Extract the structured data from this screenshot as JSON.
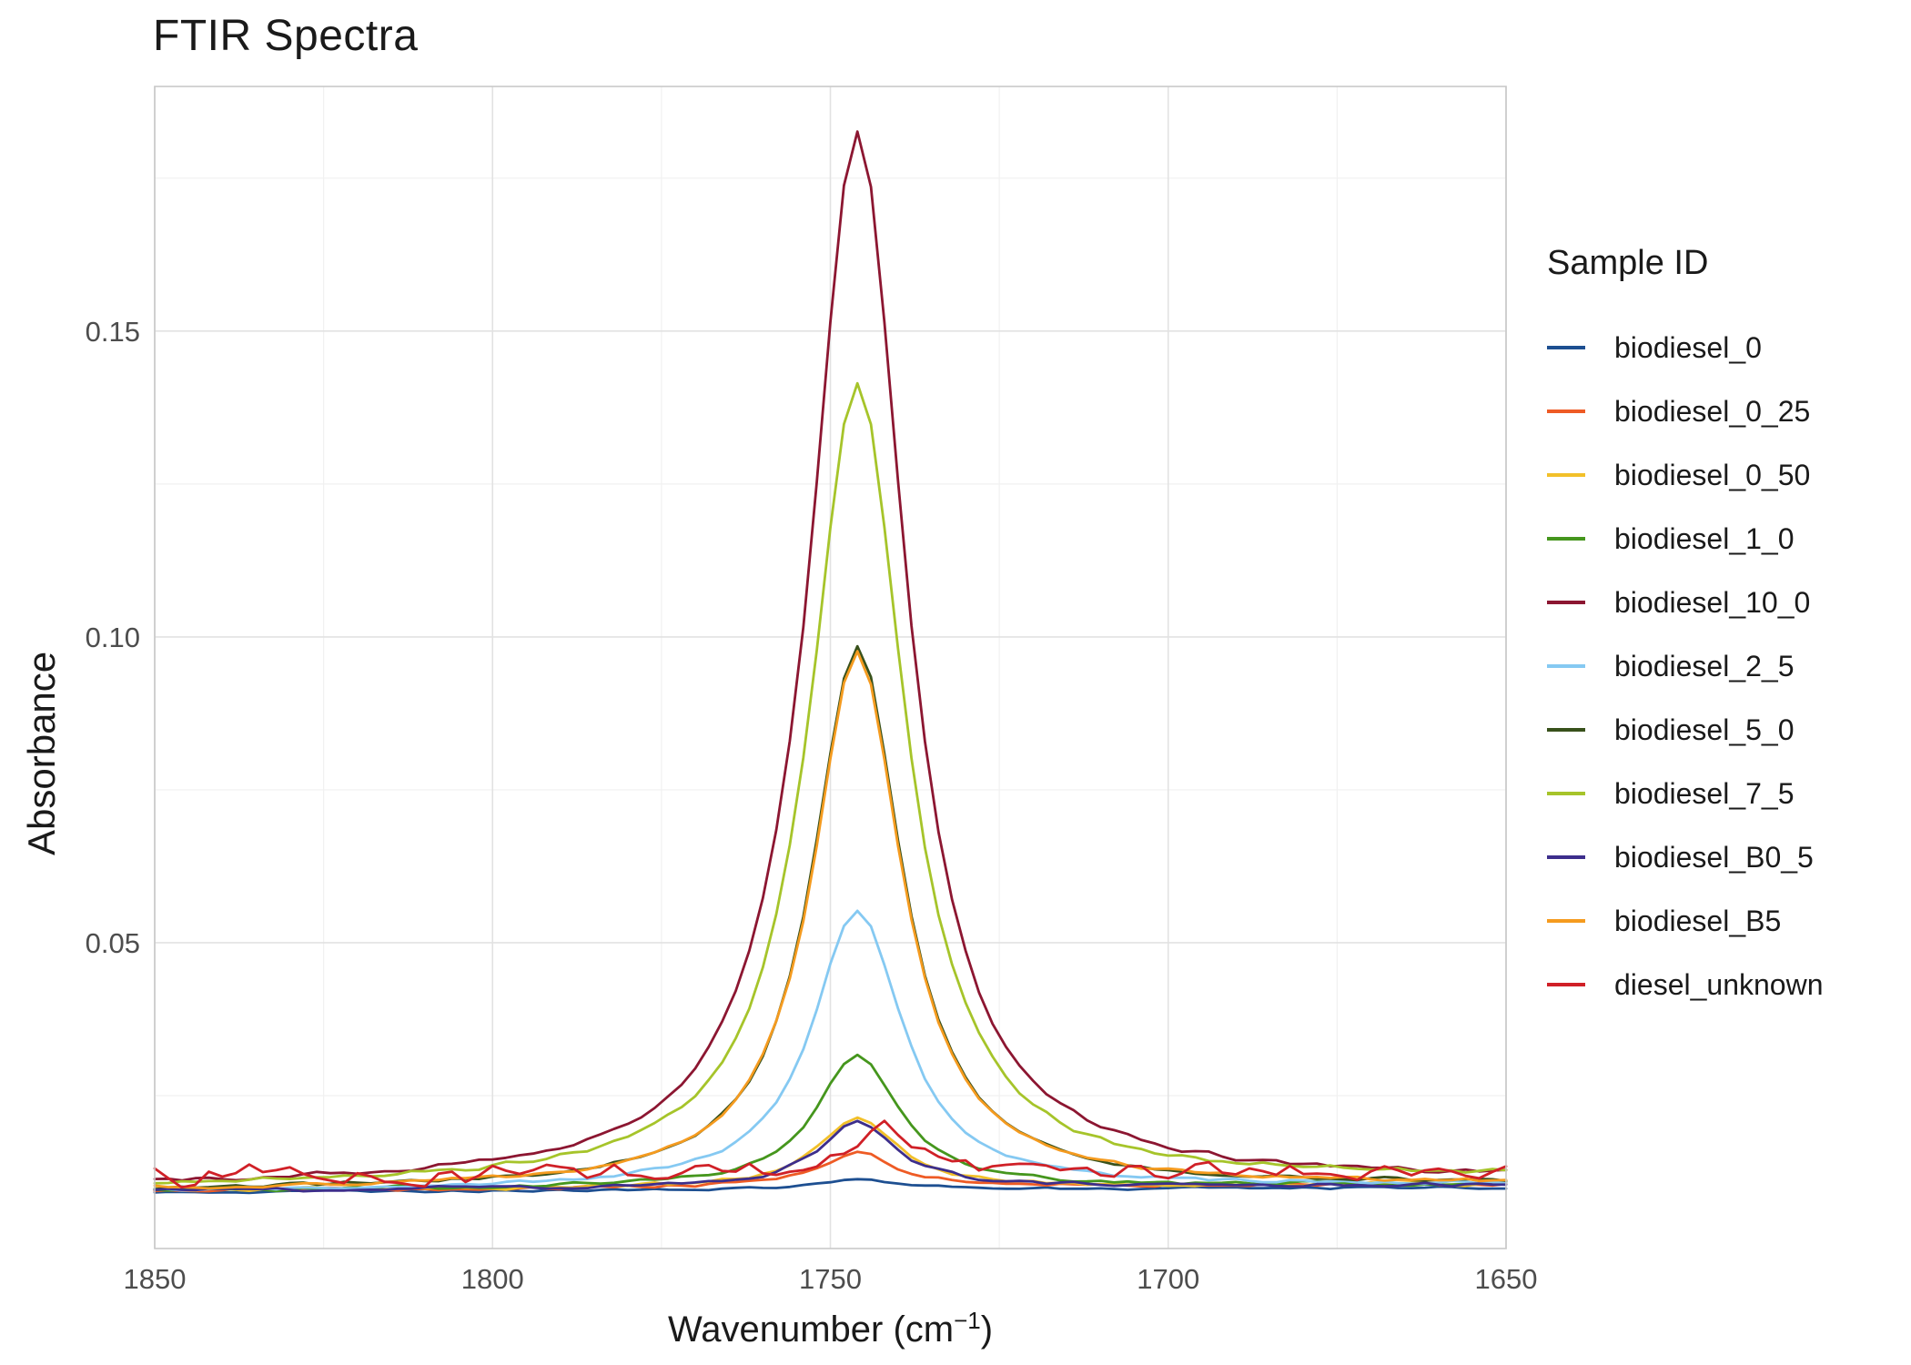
{
  "chart_data": {
    "type": "line",
    "title": "FTIR Spectra",
    "ylabel": "Absorbance",
    "xlabel_prefix": "Wavenumber (cm",
    "xlabel_superscript": "−1",
    "xlabel_suffix": ")",
    "legend_title": "Sample ID",
    "legend_position": "right",
    "x_range": [
      1850,
      1650
    ],
    "x_axis_reversed": true,
    "x_step": 2,
    "ylim": [
      0,
      0.19
    ],
    "x_tick_values": [
      1850,
      1800,
      1750,
      1700,
      1650
    ],
    "x_tick_labels": [
      "1850",
      "1800",
      "1750",
      "1700",
      "1650"
    ],
    "x_minor_ticks": [
      1825,
      1775,
      1725,
      1675
    ],
    "y_tick_values": [
      0.05,
      0.1,
      0.15
    ],
    "y_tick_labels": [
      "0.05",
      "0.10",
      "0.15"
    ],
    "y_minor_ticks": [
      0.025,
      0.075,
      0.125,
      0.175
    ],
    "grid": {
      "major_color": "#e2e2e2",
      "minor_color": "#f1f1f1",
      "panel_border": "#c9c9c9",
      "panel_bg": "#ffffff",
      "tick_label_color": "#4d4d4d"
    },
    "series": [
      {
        "name": "biodiesel_0",
        "color": "#1d4f91",
        "baseline": 0.0092,
        "peak_absorbance": 0.011,
        "peak_center": 1746,
        "peak_halfwidth": 7.0,
        "noise": 0.00025,
        "slope": 0.0008,
        "seed": 1
      },
      {
        "name": "biodiesel_0_25",
        "color": "#ee5b25",
        "baseline": 0.0095,
        "peak_absorbance": 0.015,
        "peak_center": 1746,
        "peak_halfwidth": 7.0,
        "noise": 0.0004,
        "slope": 0.001,
        "seed": 2
      },
      {
        "name": "biodiesel_0_50",
        "color": "#f2c029",
        "baseline": 0.0095,
        "peak_absorbance": 0.021,
        "peak_center": 1746,
        "peak_halfwidth": 7.0,
        "noise": 0.0004,
        "slope": 0.001,
        "seed": 3
      },
      {
        "name": "biodiesel_1_0",
        "color": "#45961d",
        "baseline": 0.0095,
        "peak_absorbance": 0.031,
        "peak_center": 1746,
        "peak_halfwidth": 7.5,
        "noise": 0.0004,
        "slope": 0.001,
        "seed": 4
      },
      {
        "name": "biodiesel_10_0",
        "color": "#8c1631",
        "baseline": 0.01,
        "peak_absorbance": 0.182,
        "peak_center": 1746,
        "peak_halfwidth": 8.5,
        "noise": 0.0005,
        "slope": 0.0012,
        "seed": 5
      },
      {
        "name": "biodiesel_2_5",
        "color": "#85c9f2",
        "baseline": 0.0095,
        "peak_absorbance": 0.055,
        "peak_center": 1746,
        "peak_halfwidth": 8.0,
        "noise": 0.0004,
        "slope": 0.001,
        "seed": 6
      },
      {
        "name": "biodiesel_5_0",
        "color": "#38511b",
        "baseline": 0.0095,
        "peak_absorbance": 0.098,
        "peak_center": 1746,
        "peak_halfwidth": 8.0,
        "noise": 0.0004,
        "slope": 0.001,
        "seed": 7
      },
      {
        "name": "biodiesel_7_5",
        "color": "#a6c42a",
        "baseline": 0.01,
        "peak_absorbance": 0.141,
        "peak_center": 1746,
        "peak_halfwidth": 8.5,
        "noise": 0.0005,
        "slope": 0.0015,
        "seed": 8
      },
      {
        "name": "biodiesel_B0_5",
        "color": "#3d2e8c",
        "baseline": 0.0095,
        "peak_absorbance": 0.02,
        "peak_center": 1746,
        "peak_halfwidth": 7.0,
        "noise": 0.0004,
        "slope": 0.001,
        "seed": 9
      },
      {
        "name": "biodiesel_B5",
        "color": "#f59b1f",
        "baseline": 0.0095,
        "peak_absorbance": 0.097,
        "peak_center": 1746,
        "peak_halfwidth": 8.0,
        "noise": 0.0004,
        "slope": 0.001,
        "seed": 10
      },
      {
        "name": "diesel_unknown",
        "color": "#d02027",
        "baseline": 0.0118,
        "peak_absorbance": 0.019,
        "peak_center": 1742,
        "peak_halfwidth": 5.0,
        "noise": 0.002,
        "slope": 0.0008,
        "seed": 11
      }
    ]
  }
}
